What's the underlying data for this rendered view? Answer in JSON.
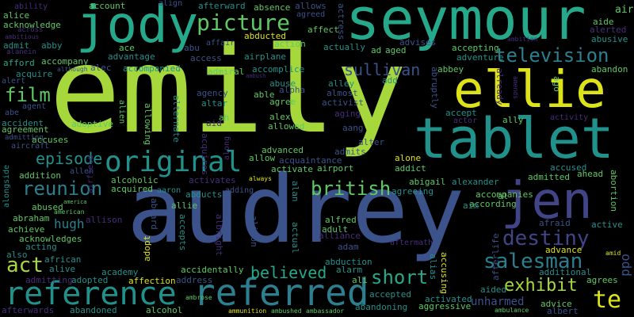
{
  "colors": {
    "background": "#000000",
    "lime": "#a6d83c",
    "green": "#5ec962",
    "teal": "#21918c",
    "sea": "#26a98a",
    "blue": "#3b528b",
    "indigo": "#414487",
    "purple": "#472d7b",
    "yellow": "#dde318",
    "cyan": "#2c7f8e"
  },
  "words": {
    "emily": "emily",
    "audrey": "audrey",
    "seymour": "seymour",
    "jody": "jody",
    "tablet": "tablet",
    "ellie": "ellie",
    "jen": "jen",
    "referred": "referred",
    "reference": "reference",
    "original": "original",
    "picture": "picture",
    "television": "television",
    "destiny": "destiny",
    "salesman": "salesman",
    "film": "film",
    "reunion": "reunion",
    "british": "british",
    "episode": "episode",
    "short": "short",
    "exhibit": "exhibit",
    "believed": "believed",
    "sullivan": "sullivan",
    "act": "act",
    "te": "te",
    "hugh": "hugh",
    "unharmed": "unharmed",
    "account": "account",
    "afterward": "afterward",
    "absence": "absence",
    "allows": "allows",
    "air": "air",
    "ability": "ability",
    "alice": "alice",
    "acknowledge": "acknowledge",
    "across": "across",
    "ambitious": "ambitious",
    "admit": "admit",
    "abby": "abby",
    "alanein": "alanein",
    "afford": "afford",
    "accompany": "accompany",
    "acquire": "acquire",
    "although": "although",
    "alec": "alec",
    "accompanied": "accompanied",
    "alert": "alert",
    "agent": "agent",
    "abe": "abe",
    "accident": "accident",
    "agreement": "agreement",
    "admitting": "admitting",
    "aircraft": "aircraft",
    "accuses": "accuses",
    "adoptive": "adoptive",
    "align": "align",
    "abducted": "abducted",
    "affair": "affair",
    "action": "action",
    "affect": "affect",
    "agreed": "agreed",
    "actress": "actress",
    "ace": "ace",
    "abu": "abu",
    "advantage": "advantage",
    "access": "access",
    "airplane": "airplane",
    "ad": "ad",
    "aged": "aged",
    "actually": "actually",
    "advises": "advises",
    "admiral": "admiral",
    "accomplice": "accomplice",
    "ambush": "ambush",
    "abuse": "abuse",
    "agency": "agency",
    "able": "able",
    "alpha": "alpha",
    "altar": "altar",
    "agree": "agree",
    "alley": "alley",
    "almost": "almost",
    "activist": "activist",
    "ah": "ah",
    "alex": "alex",
    "allowed": "allowed",
    "aging": "aging",
    "aid": "aid",
    "accepting": "accepting",
    "adventure": "adventure",
    "abbey": "abbey",
    "abruptly": "abruptly",
    "accept": "accept",
    "actor": "actor",
    "ally": "ally",
    "activity": "activity",
    "already": "already",
    "ago": "ago",
    "ambition": "ambition",
    "aide": "aide",
    "alerted": "alerted",
    "abusive": "abusive",
    "abandon": "abandon",
    "amends": "amends",
    "aang": "aang",
    "alter": "alter",
    "advanced": "advanced",
    "admits": "admits",
    "allow": "allow",
    "acquaintance": "acquaintance",
    "alone": "alone",
    "activate": "activate",
    "airport": "airport",
    "addict": "addict",
    "abigail": "abigail",
    "alexander": "alexander",
    "agreeing": "agreeing",
    "accused": "accused",
    "admitted": "admitted",
    "ahead": "ahead",
    "accompanies": "accompanies",
    "according": "according",
    "al": "al",
    "abortion": "abortion",
    "alongside": "alongside",
    "addition": "addition",
    "allen": "allen",
    "alcoholic": "alcoholic",
    "acquired": "acquired",
    "aaron": "aaron",
    "activates": "activates",
    "abducts": "abducts",
    "adding": "adding",
    "always": "always",
    "alan": "alan",
    "allowing": "allowing",
    "alien": "alien",
    "airfield": "airfield",
    "alternate": "alternate",
    "acquires": "acquires",
    "along": "along",
    "abused": "abused",
    "america": "america",
    "american": "american",
    "abraham": "abraham",
    "achieve": "achieve",
    "acknowledges": "acknowledges",
    "acting": "acting",
    "also": "also",
    "african": "african",
    "alive": "alive",
    "academy": "academy",
    "admitting2": "admitting",
    "adopted": "adopted",
    "affection": "affection",
    "address": "address",
    "alcohol": "alcohol",
    "abandoned": "abandoned",
    "afterwards": "afterwards",
    "allie": "allie",
    "allison": "allison",
    "aboard": "aboard",
    "adopt": "adopt",
    "accepts": "accepts",
    "albright": "albright",
    "alison": "alison",
    "accidentally": "accidentally",
    "ambrose": "ambrose",
    "ammunition": "ammunition",
    "ambushed": "ambushed",
    "ambassador": "ambassador",
    "actual": "actual",
    "alfred": "alfred",
    "adult": "adult",
    "alliance": "alliance",
    "adam": "adam",
    "abduction": "abduction",
    "alarm": "alarm",
    "ali": "ali",
    "accepted": "accepted",
    "abandoning": "abandoning",
    "aftermath": "aftermath",
    "alias": "alias",
    "accusing": "accusing",
    "activated": "activated",
    "aggressive": "aggressive",
    "afterlife": "afterlife",
    "aim": "aim",
    "afraid": "afraid",
    "advance": "advance",
    "additional": "additional",
    "aided": "aided",
    "advice": "advice",
    "albert": "albert",
    "ambulance": "ambulance",
    "agrees": "agrees",
    "active": "active",
    "amid": "amid",
    "add": "add",
    "odd": "odd"
  }
}
